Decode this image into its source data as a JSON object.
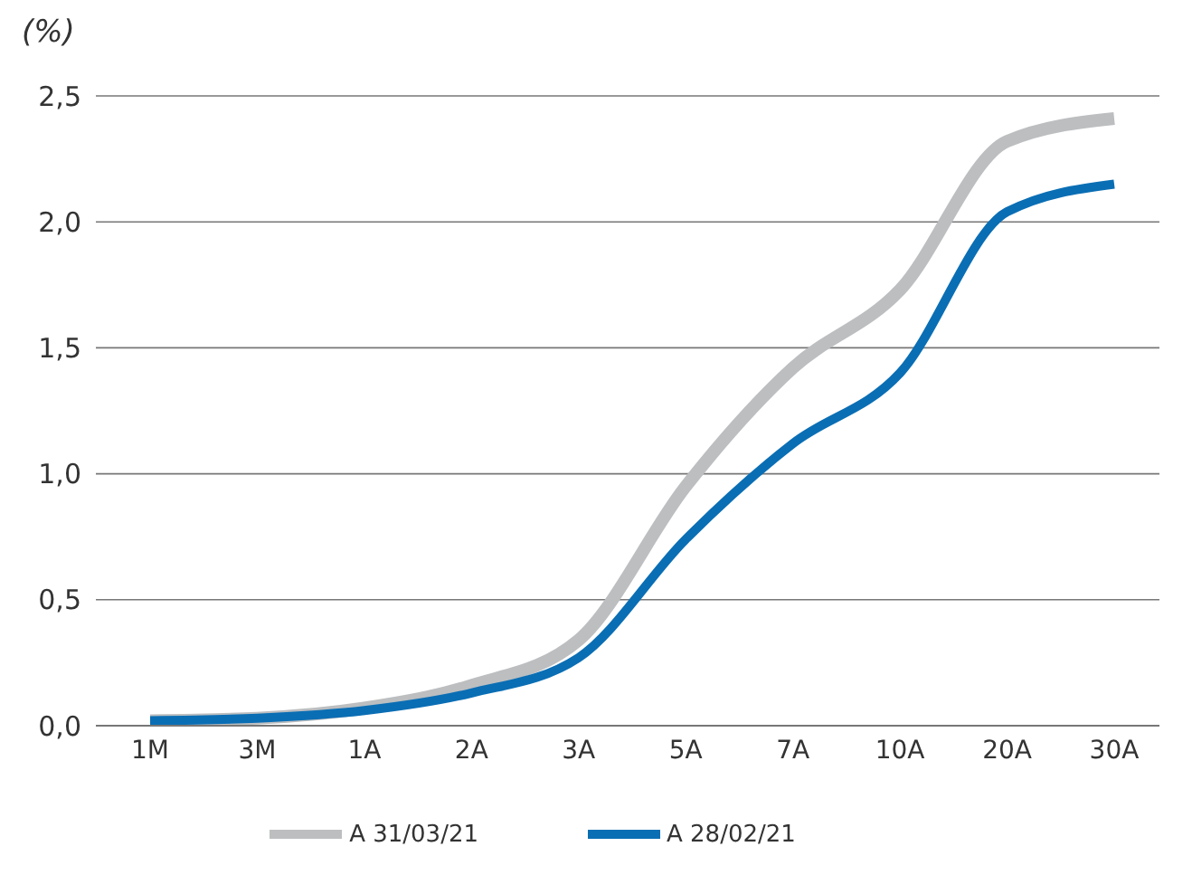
{
  "chart_data": {
    "type": "line",
    "ylabel": "(%)",
    "categories": [
      "1M",
      "3M",
      "1A",
      "2A",
      "3A",
      "5A",
      "7A",
      "10A",
      "20A",
      "30A"
    ],
    "series": [
      {
        "name": "A 31/03/21",
        "color": "#bcbec0",
        "values": [
          0.02,
          0.03,
          0.07,
          0.16,
          0.34,
          0.95,
          1.42,
          1.73,
          2.32,
          2.41
        ]
      },
      {
        "name": "A 28/02/21",
        "color": "#0a6eb4",
        "values": [
          0.02,
          0.03,
          0.06,
          0.13,
          0.27,
          0.74,
          1.12,
          1.4,
          2.04,
          2.15
        ]
      }
    ],
    "ylim": [
      0,
      2.5
    ],
    "yticks": [
      {
        "value": 0,
        "label": "0,0"
      },
      {
        "value": 0.5,
        "label": "0,5"
      },
      {
        "value": 1,
        "label": "1,0"
      },
      {
        "value": 1.5,
        "label": "1,5"
      },
      {
        "value": 2,
        "label": "2,0"
      },
      {
        "value": 2.5,
        "label": "2,5"
      }
    ],
    "grid": "y",
    "legend": "bottom",
    "marker": "none",
    "line_style": "solid"
  }
}
